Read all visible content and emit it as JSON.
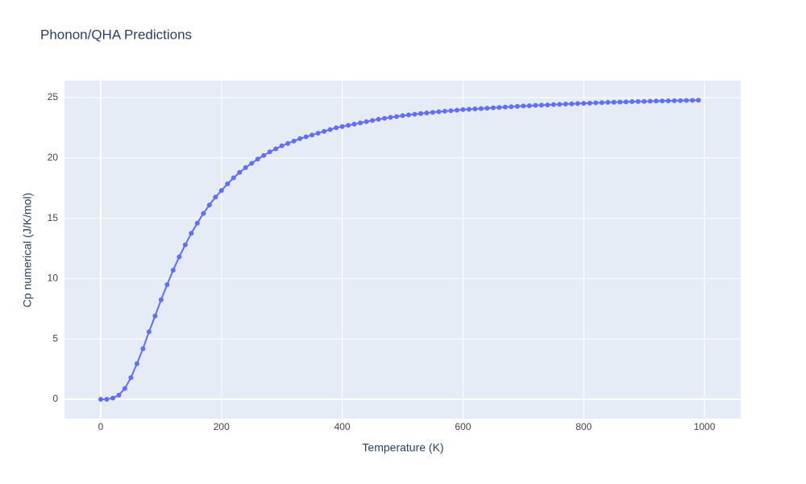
{
  "chart_data": {
    "type": "line",
    "title": "Phonon/QHA Predictions",
    "x_label": "Temperature (K)",
    "y_label": "Cp numerical (J/K/mol)",
    "x": [
      0,
      10,
      20,
      30,
      40,
      50,
      60,
      70,
      80,
      90,
      100,
      110,
      120,
      130,
      140,
      150,
      160,
      170,
      180,
      190,
      200,
      210,
      220,
      230,
      240,
      250,
      260,
      270,
      280,
      290,
      300,
      310,
      320,
      330,
      340,
      350,
      360,
      370,
      380,
      390,
      400,
      410,
      420,
      430,
      440,
      450,
      460,
      470,
      480,
      490,
      500,
      510,
      520,
      530,
      540,
      550,
      560,
      570,
      580,
      590,
      600,
      610,
      620,
      630,
      640,
      650,
      660,
      670,
      680,
      690,
      700,
      710,
      720,
      730,
      740,
      750,
      760,
      770,
      780,
      790,
      800,
      810,
      820,
      830,
      840,
      850,
      860,
      870,
      880,
      890,
      900,
      910,
      920,
      930,
      940,
      950,
      960,
      970,
      980,
      990
    ],
    "series": [
      {
        "name": "Cp numerical",
        "color": "#636efa",
        "values": [
          0,
          0,
          0.1,
          0.35,
          0.9,
          1.8,
          2.95,
          4.2,
          5.6,
          6.9,
          8.25,
          9.5,
          10.7,
          11.8,
          12.8,
          13.75,
          14.6,
          15.4,
          16.1,
          16.75,
          17.3,
          17.85,
          18.35,
          18.8,
          19.2,
          19.55,
          19.9,
          20.2,
          20.5,
          20.75,
          21.0,
          21.2,
          21.4,
          21.6,
          21.75,
          21.9,
          22.05,
          22.2,
          22.35,
          22.5,
          22.6,
          22.7,
          22.8,
          22.9,
          23.0,
          23.1,
          23.2,
          23.28,
          23.36,
          23.43,
          23.5,
          23.56,
          23.62,
          23.68,
          23.73,
          23.78,
          23.83,
          23.87,
          23.91,
          23.95,
          24.0,
          24.03,
          24.06,
          24.09,
          24.12,
          24.15,
          24.18,
          24.21,
          24.24,
          24.27,
          24.3,
          24.32,
          24.35,
          24.37,
          24.39,
          24.42,
          24.44,
          24.46,
          24.48,
          24.5,
          24.52,
          24.54,
          24.56,
          24.58,
          24.6,
          24.61,
          24.63,
          24.64,
          24.66,
          24.67,
          24.68,
          24.7,
          24.71,
          24.72,
          24.73,
          24.74,
          24.75,
          24.76,
          24.77,
          24.78
        ]
      }
    ],
    "xlim": [
      -60,
      1060
    ],
    "ylim": [
      -1.6,
      26.4
    ],
    "xticks": [
      0,
      200,
      400,
      600,
      800,
      1000
    ],
    "yticks": [
      0,
      5,
      10,
      15,
      20,
      25
    ],
    "grid": true
  }
}
